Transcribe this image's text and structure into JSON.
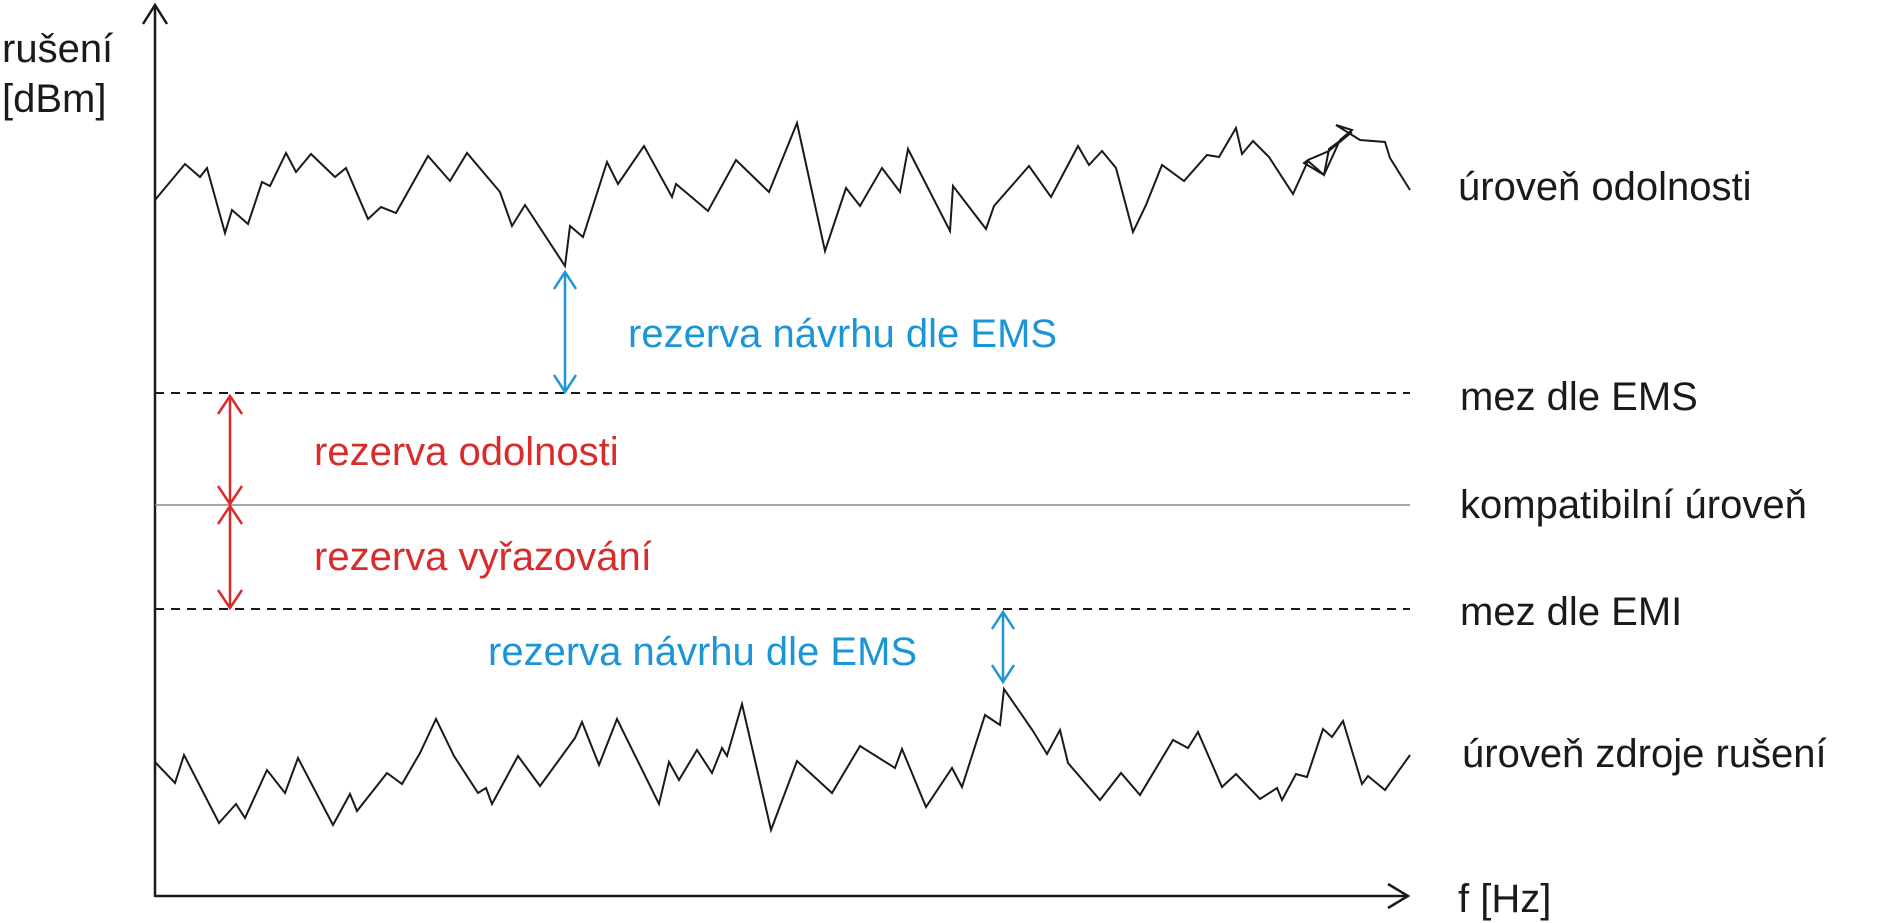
{
  "axes": {
    "y_label_line1": "rušení",
    "y_label_line2": "[dBm]",
    "x_label": "f [Hz]"
  },
  "levels": {
    "immunity": "úroveň odolnosti",
    "ems_limit": "mez dle EMS",
    "compatibility": "kompatibilní úroveň",
    "emi_limit": "mez dle EMI",
    "source": "úroveň zdroje rušení"
  },
  "margins": {
    "ems_design_upper": "rezerva návrhu dle EMS",
    "immunity": "rezerva odolnosti",
    "emission": "rezerva vyřazování",
    "ems_design_lower": "rezerva návrhu dle EMS"
  },
  "colors": {
    "blue": "#1c95d6",
    "red": "#d92b2b",
    "black": "#1a1a1a"
  }
}
